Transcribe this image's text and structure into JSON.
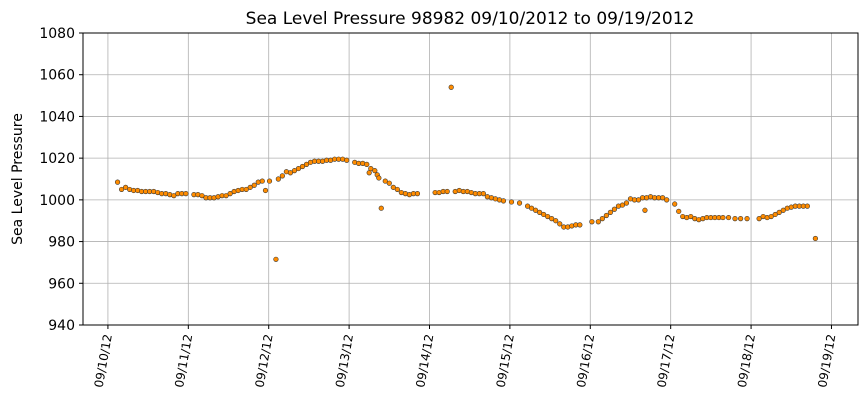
{
  "chart_data": {
    "type": "scatter",
    "title": "Sea Level Pressure 98982  09/10/2012 to 09/19/2012",
    "y_label": "Sea Level Pressure",
    "color": "#ff8c00",
    "edge_color": "#333333",
    "grid": true,
    "xlim": [
      -0.31,
      9.33
    ],
    "ylim": [
      940,
      1080
    ],
    "xticks": [
      {
        "value": 0,
        "label": "09/10/12"
      },
      {
        "value": 1,
        "label": "09/11/12"
      },
      {
        "value": 2,
        "label": "09/12/12"
      },
      {
        "value": 3,
        "label": "09/13/12"
      },
      {
        "value": 4,
        "label": "09/14/12"
      },
      {
        "value": 5,
        "label": "09/15/12"
      },
      {
        "value": 6,
        "label": "09/16/12"
      },
      {
        "value": 7,
        "label": "09/17/12"
      },
      {
        "value": 8,
        "label": "09/18/12"
      },
      {
        "value": 9,
        "label": "09/19/12"
      }
    ],
    "yticks": [
      940,
      960,
      980,
      1000,
      1020,
      1040,
      1060,
      1080
    ],
    "x": [
      0.12,
      0.17,
      0.22,
      0.27,
      0.32,
      0.37,
      0.42,
      0.47,
      0.52,
      0.57,
      0.62,
      0.67,
      0.72,
      0.77,
      0.82,
      0.87,
      0.92,
      0.97,
      1.07,
      1.12,
      1.17,
      1.22,
      1.27,
      1.32,
      1.37,
      1.42,
      1.47,
      1.52,
      1.57,
      1.62,
      1.67,
      1.72,
      1.77,
      1.82,
      1.87,
      1.92,
      1.96,
      2.01,
      2.09,
      2.12,
      2.17,
      2.22,
      2.27,
      2.32,
      2.37,
      2.42,
      2.47,
      2.52,
      2.57,
      2.62,
      2.67,
      2.72,
      2.77,
      2.82,
      2.87,
      2.92,
      2.97,
      3.07,
      3.12,
      3.17,
      3.22,
      3.25,
      3.27,
      3.32,
      3.35,
      3.37,
      3.4,
      3.45,
      3.5,
      3.55,
      3.6,
      3.65,
      3.7,
      3.75,
      3.8,
      3.85,
      4.07,
      4.12,
      4.17,
      4.22,
      4.27,
      4.32,
      4.37,
      4.42,
      4.47,
      4.52,
      4.57,
      4.62,
      4.67,
      4.72,
      4.77,
      4.82,
      4.87,
      4.92,
      5.02,
      5.12,
      5.22,
      5.27,
      5.32,
      5.37,
      5.42,
      5.47,
      5.52,
      5.57,
      5.62,
      5.67,
      5.72,
      5.77,
      5.82,
      5.87,
      6.02,
      6.1,
      6.15,
      6.2,
      6.25,
      6.3,
      6.35,
      6.4,
      6.45,
      6.5,
      6.55,
      6.6,
      6.65,
      6.68,
      6.7,
      6.75,
      6.8,
      6.85,
      6.9,
      6.95,
      7.05,
      7.1,
      7.15,
      7.2,
      7.25,
      7.3,
      7.35,
      7.4,
      7.45,
      7.5,
      7.55,
      7.6,
      7.65,
      7.72,
      7.8,
      7.87,
      7.95,
      8.1,
      8.15,
      8.2,
      8.25,
      8.3,
      8.35,
      8.4,
      8.45,
      8.5,
      8.55,
      8.6,
      8.65,
      8.7,
      8.8
    ],
    "values": [
      1008.5,
      1005,
      1006,
      1005,
      1004.5,
      1004.5,
      1004,
      1004,
      1004,
      1004,
      1003.5,
      1003,
      1003,
      1002.5,
      1002,
      1003,
      1003,
      1003,
      1002.5,
      1002.5,
      1002,
      1001,
      1001,
      1001,
      1001.5,
      1002,
      1002,
      1003,
      1004,
      1004.5,
      1005,
      1005,
      1006,
      1007,
      1008.5,
      1009,
      1004.5,
      1009,
      971.5,
      1010,
      1011.5,
      1013.5,
      1013,
      1014,
      1015,
      1016,
      1017,
      1018,
      1018.5,
      1018.5,
      1018.5,
      1019,
      1019,
      1019.5,
      1019.5,
      1019.5,
      1019,
      1018,
      1017.5,
      1017.5,
      1017,
      1013,
      1015,
      1014,
      1012,
      1010.5,
      996,
      1009,
      1008,
      1006,
      1005,
      1003.5,
      1003,
      1002.5,
      1003,
      1003,
      1003.5,
      1003.5,
      1004,
      1004,
      1054,
      1004,
      1004.5,
      1004,
      1004,
      1003.5,
      1003,
      1003,
      1003,
      1001.5,
      1001,
      1000.5,
      1000,
      999.5,
      999,
      998.5,
      997,
      996,
      995,
      994,
      993,
      992,
      991,
      990,
      988.5,
      987,
      987,
      987.5,
      988,
      988,
      989.5,
      989.5,
      991,
      992.5,
      994,
      995.5,
      997,
      997.5,
      998.5,
      1000.5,
      1000,
      1000,
      1001,
      995,
      1001,
      1001.5,
      1001,
      1001,
      1001,
      1000,
      998,
      994.5,
      992,
      991.5,
      992,
      991,
      990.5,
      991,
      991.5,
      991.5,
      991.5,
      991.5,
      991.5,
      991.5,
      991,
      991,
      991,
      991,
      992,
      991.5,
      992,
      993,
      994,
      995,
      996,
      996.5,
      997,
      997,
      997,
      997,
      981.5
    ]
  }
}
